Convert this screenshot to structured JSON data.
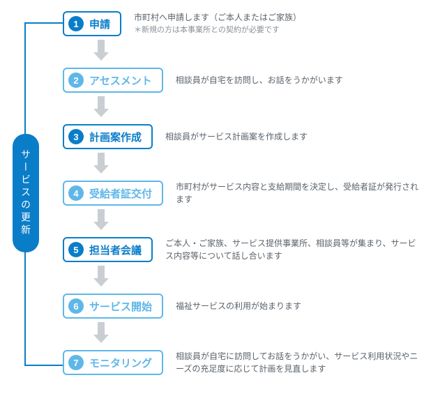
{
  "type": "flowchart",
  "loop_label": "サービスの更新",
  "colors": {
    "primary": "#0a7dc9",
    "accent": "#5fb7e8",
    "arrow": "#c9ced3",
    "loop_line": "#0a7dc9",
    "text_desc": "#5a626a",
    "text_sub": "#8a9199",
    "background": "#ffffff"
  },
  "layout": {
    "box_border_width": 2,
    "box_border_radius": 6,
    "num_circle_diameter": 22,
    "arrow_height": 30,
    "arrow_width": 22
  },
  "steps": [
    {
      "num": "1",
      "title": "申請",
      "desc": "市町村へ申請します（ご本人またはご家族）",
      "sub": "＊新規の方は本事業所との契約が必要です",
      "color": "primary"
    },
    {
      "num": "2",
      "title": "アセスメント",
      "desc": "相談員が自宅を訪問し、お話をうかがいます",
      "color": "accent"
    },
    {
      "num": "3",
      "title": "計画案作成",
      "desc": "相談員がサービス計画案を作成します",
      "color": "primary"
    },
    {
      "num": "4",
      "title": "受給者証交付",
      "desc": "市町村がサービス内容と支給期間を決定し、受給者証が発行されます",
      "color": "accent"
    },
    {
      "num": "5",
      "title": "担当者会議",
      "desc": "ご本人・ご家族、サービス提供事業所、相談員等が集まり、サービス内容等について話し合います",
      "color": "primary"
    },
    {
      "num": "6",
      "title": "サービス開始",
      "desc": "福祉サービスの利用が始まります",
      "color": "accent"
    },
    {
      "num": "7",
      "title": "モニタリング",
      "desc": "相談員が自宅に訪問してお話をうかがい、サービス利用状況やニーズの充足度に応じて計画を見直します",
      "color": "accent"
    }
  ]
}
